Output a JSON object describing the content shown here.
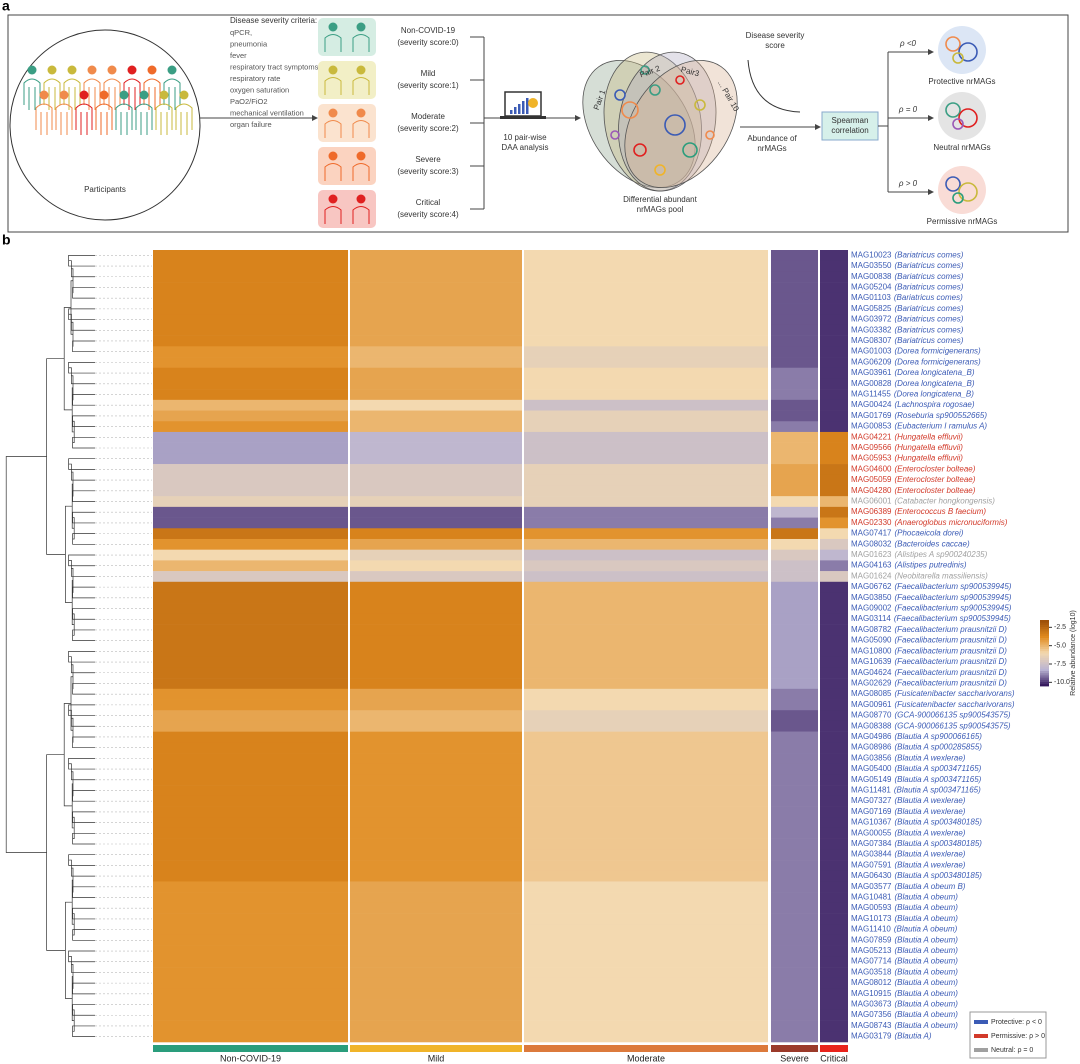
{
  "panel_a": {
    "label": "a",
    "participants": "Participants",
    "criteria_title": "Disease severity criteria:",
    "criteria": [
      "qPCR,",
      "pneumonia",
      "fever",
      "respiratory tract symptoms",
      "respiratory rate",
      "oxygen saturation",
      "PaO2/FiO2",
      "mechanical ventilation",
      "organ failure"
    ],
    "groups": [
      {
        "name": "Non-COVID-19",
        "score": "(severity score:0)",
        "bg": "#d5ede3",
        "head": "#3b9e84"
      },
      {
        "name": "Mild",
        "score": "(severity score:1)",
        "bg": "#f2efc6",
        "head": "#c9b93c"
      },
      {
        "name": "Moderate",
        "score": "(severity score:2)",
        "bg": "#fbe3cf",
        "head": "#f08a4b"
      },
      {
        "name": "Severe",
        "score": "(severity score:3)",
        "bg": "#fbd3c0",
        "head": "#ef6a2a"
      },
      {
        "name": "Critical",
        "score": "(severity score:4)",
        "bg": "#f8c6c2",
        "head": "#e02020"
      }
    ],
    "daa": [
      "10 pair-wise",
      "DAA analysis"
    ],
    "pairs": [
      "Pair 1",
      "Pair 2",
      "Pair3",
      "... Pair 10"
    ],
    "pool": [
      "Differential abundant",
      "nrMAGs pool"
    ],
    "severity": [
      "Disease severity",
      "score"
    ],
    "abundance": [
      "Abundance of",
      "nrMAGs"
    ],
    "spearman": [
      "Spearman",
      "correlation"
    ],
    "outcomes": [
      {
        "rho": "ρ <0",
        "label": "Protective nrMAGs",
        "color": "#3b5bb5",
        "bg": "#dce6f5"
      },
      {
        "rho": "ρ = 0",
        "label": "Neutral nrMAGs",
        "color": "#9a9a9a",
        "bg": "#e4e4e4"
      },
      {
        "rho": "ρ > 0",
        "label": "Permissive nrMAGs",
        "color": "#d23a2a",
        "bg": "#f9dcd6"
      }
    ]
  },
  "panel_b": {
    "label": "b",
    "groups": [
      {
        "name": "Non-COVID-19",
        "color": "#2a9d7c"
      },
      {
        "name": "Mild",
        "color": "#f0b429"
      },
      {
        "name": "Moderate",
        "color": "#dc7a3c"
      },
      {
        "name": "Severe",
        "color": "#9b3a2a"
      },
      {
        "name": "Critical",
        "color": "#e8231c"
      }
    ],
    "colorbar": {
      "title": "Relative abundance (log10)",
      "clim": [
        -10.5,
        -1.5
      ],
      "colormap": [
        "#2b0d55",
        "#b9b3d3",
        "#f3d9b0",
        "#e08a1e",
        "#9a4d08"
      ],
      "ticks": [
        -2.5,
        {
          "value": -5,
          "label": "-5.0"
        },
        -7.5,
        {
          "value": -10,
          "label": "-10.0"
        }
      ]
    },
    "legend": [
      {
        "text": "Protective: ρ < 0",
        "color": "#3b5bb5"
      },
      {
        "text": "Permissive: ρ > 0",
        "color": "#d23a2a"
      },
      {
        "text": "Neutral: ρ = 0",
        "color": "#a0a0a0"
      }
    ],
    "rows": [
      {
        "id": "MAG10023",
        "taxon": "(Bariatricus comes)",
        "color": "#3b5bb5",
        "values": [
          -3.5,
          -4.5,
          -6,
          -9.5,
          -10
        ]
      },
      {
        "id": "MAG03550",
        "taxon": "(Bariatricus comes)",
        "color": "#3b5bb5",
        "values": [
          -3.5,
          -4.5,
          -6,
          -9.5,
          -10
        ]
      },
      {
        "id": "MAG00838",
        "taxon": "(Bariatricus comes)",
        "color": "#3b5bb5",
        "values": [
          -3.5,
          -4.5,
          -6,
          -9.5,
          -10
        ]
      },
      {
        "id": "MAG05204",
        "taxon": "(Bariatricus comes)",
        "color": "#3b5bb5",
        "values": [
          -3.5,
          -4.5,
          -6,
          -9.5,
          -10
        ]
      },
      {
        "id": "MAG01103",
        "taxon": "(Bariatricus comes)",
        "color": "#3b5bb5",
        "values": [
          -3.5,
          -4.5,
          -6,
          -9.5,
          -10
        ]
      },
      {
        "id": "MAG05825",
        "taxon": "(Bariatricus comes)",
        "color": "#3b5bb5",
        "values": [
          -3.5,
          -4.5,
          -6,
          -9.5,
          -10
        ]
      },
      {
        "id": "MAG03972",
        "taxon": "(Bariatricus comes)",
        "color": "#3b5bb5",
        "values": [
          -3.5,
          -4.5,
          -6,
          -9.5,
          -10
        ]
      },
      {
        "id": "MAG03382",
        "taxon": "(Bariatricus comes)",
        "color": "#3b5bb5",
        "values": [
          -3.5,
          -4.5,
          -6,
          -9.5,
          -10
        ]
      },
      {
        "id": "MAG08307",
        "taxon": "(Bariatricus comes)",
        "color": "#3b5bb5",
        "values": [
          -3.5,
          -4.5,
          -6,
          -9.5,
          -10
        ]
      },
      {
        "id": "MAG01003",
        "taxon": "(Dorea formicigenerans)",
        "color": "#3b5bb5",
        "values": [
          -4,
          -5,
          -6.5,
          -9.5,
          -10
        ]
      },
      {
        "id": "MAG06209",
        "taxon": "(Dorea formicigenerans)",
        "color": "#3b5bb5",
        "values": [
          -4,
          -5,
          -6.5,
          -9.5,
          -10
        ]
      },
      {
        "id": "MAG03961",
        "taxon": "(Dorea longicatena_B)",
        "color": "#3b5bb5",
        "values": [
          -3.5,
          -4.5,
          -6,
          -9,
          -10
        ]
      },
      {
        "id": "MAG00828",
        "taxon": "(Dorea longicatena_B)",
        "color": "#3b5bb5",
        "values": [
          -3.5,
          -4.5,
          -6,
          -9,
          -10
        ]
      },
      {
        "id": "MAG11455",
        "taxon": "(Dorea longicatena_B)",
        "color": "#3b5bb5",
        "values": [
          -3.5,
          -4.5,
          -6,
          -9,
          -10
        ]
      },
      {
        "id": "MAG00424",
        "taxon": "(Lachnospira rogosae)",
        "color": "#3b5bb5",
        "values": [
          -5,
          -6,
          -7.5,
          -9.5,
          -10
        ]
      },
      {
        "id": "MAG01769",
        "taxon": "(Roseburia sp900552665)",
        "color": "#3b5bb5",
        "values": [
          -4.5,
          -5,
          -6.5,
          -9.5,
          -10
        ]
      },
      {
        "id": "MAG00853",
        "taxon": "(Eubacterium I ramulus A)",
        "color": "#3b5bb5",
        "values": [
          -4,
          -5,
          -6.5,
          -9,
          -10
        ]
      },
      {
        "id": "MAG04221",
        "taxon": "(Hungatella effluvii)",
        "color": "#d23a2a",
        "values": [
          -8.5,
          -8,
          -7.5,
          -5,
          -3.5
        ]
      },
      {
        "id": "MAG09566",
        "taxon": "(Hungatella effluvii)",
        "color": "#d23a2a",
        "values": [
          -8.5,
          -8,
          -7.5,
          -5,
          -3.5
        ]
      },
      {
        "id": "MAG05953",
        "taxon": "(Hungatella effluvii)",
        "color": "#d23a2a",
        "values": [
          -8.5,
          -8,
          -7.5,
          -5,
          -3.5
        ]
      },
      {
        "id": "MAG04600",
        "taxon": "(Enterocloster bolteae)",
        "color": "#d23a2a",
        "values": [
          -7,
          -7,
          -6.5,
          -4.5,
          -3
        ]
      },
      {
        "id": "MAG05059",
        "taxon": "(Enterocloster bolteae)",
        "color": "#d23a2a",
        "values": [
          -7,
          -7,
          -6.5,
          -4.5,
          -3
        ]
      },
      {
        "id": "MAG04280",
        "taxon": "(Enterocloster bolteae)",
        "color": "#d23a2a",
        "values": [
          -7,
          -7,
          -6.5,
          -4.5,
          -3
        ]
      },
      {
        "id": "MAG06001",
        "taxon": "(Catabacter hongkongensis)",
        "color": "#a0a0a0",
        "values": [
          -6.5,
          -6.5,
          -6.5,
          -6,
          -5
        ]
      },
      {
        "id": "MAG06389",
        "taxon": "(Enterococcus B faecium)",
        "color": "#d23a2a",
        "values": [
          -9.5,
          -9.5,
          -9,
          -8,
          -3
        ]
      },
      {
        "id": "MAG02330",
        "taxon": "(Anaeroglobus micronuciformis)",
        "color": "#d23a2a",
        "values": [
          -9.5,
          -9.5,
          -9,
          -9,
          -4
        ]
      },
      {
        "id": "MAG07417",
        "taxon": "(Phocaeicola dorei)",
        "color": "#3b5bb5",
        "values": [
          -3,
          -3.5,
          -4,
          -3,
          -6
        ]
      },
      {
        "id": "MAG08032",
        "taxon": "(Bacteroides caccae)",
        "color": "#3b5bb5",
        "values": [
          -4,
          -4.5,
          -5,
          -6,
          -7
        ]
      },
      {
        "id": "MAG01623",
        "taxon": "(Alistipes A sp900240235)",
        "color": "#a0a0a0",
        "values": [
          -6,
          -6.5,
          -7.5,
          -7,
          -8
        ]
      },
      {
        "id": "MAG04163",
        "taxon": "(Alistipes putredinis)",
        "color": "#3b5bb5",
        "values": [
          -5,
          -6,
          -7,
          -7.5,
          -9
        ]
      },
      {
        "id": "MAG01624",
        "taxon": "(Neobitarella massiliensis)",
        "color": "#a0a0a0",
        "values": [
          -7,
          -7,
          -7.5,
          -7.5,
          -7
        ]
      },
      {
        "id": "MAG06762",
        "taxon": "(Faecalibacterium sp900539945)",
        "color": "#3b5bb5",
        "values": [
          -3,
          -3.5,
          -5,
          -8.5,
          -10
        ]
      },
      {
        "id": "MAG03850",
        "taxon": "(Faecalibacterium sp900539945)",
        "color": "#3b5bb5",
        "values": [
          -3,
          -3.5,
          -5,
          -8.5,
          -10
        ]
      },
      {
        "id": "MAG09002",
        "taxon": "(Faecalibacterium sp900539945)",
        "color": "#3b5bb5",
        "values": [
          -3,
          -3.5,
          -5,
          -8.5,
          -10
        ]
      },
      {
        "id": "MAG03114",
        "taxon": "(Faecalibacterium sp900539945)",
        "color": "#3b5bb5",
        "values": [
          -3,
          -3.5,
          -5,
          -8.5,
          -10
        ]
      },
      {
        "id": "MAG08782",
        "taxon": "(Faecalibacterium prausnitzii D)",
        "color": "#3b5bb5",
        "values": [
          -3,
          -3.5,
          -5,
          -8.5,
          -10
        ]
      },
      {
        "id": "MAG05090",
        "taxon": "(Faecalibacterium prausnitzii D)",
        "color": "#3b5bb5",
        "values": [
          -3,
          -3.5,
          -5,
          -8.5,
          -10
        ]
      },
      {
        "id": "MAG10800",
        "taxon": "(Faecalibacterium prausnitzii D)",
        "color": "#3b5bb5",
        "values": [
          -3,
          -3.5,
          -5,
          -8.5,
          -10
        ]
      },
      {
        "id": "MAG10639",
        "taxon": "(Faecalibacterium prausnitzii D)",
        "color": "#3b5bb5",
        "values": [
          -3,
          -3.5,
          -5,
          -8.5,
          -10
        ]
      },
      {
        "id": "MAG04624",
        "taxon": "(Faecalibacterium prausnitzii D)",
        "color": "#3b5bb5",
        "values": [
          -3,
          -3.5,
          -5,
          -8.5,
          -10
        ]
      },
      {
        "id": "MAG02629",
        "taxon": "(Faecalibacterium prausnitzii D)",
        "color": "#3b5bb5",
        "values": [
          -3,
          -3.5,
          -5,
          -8.5,
          -10
        ]
      },
      {
        "id": "MAG08085",
        "taxon": "(Fusicatenibacter saccharivorans)",
        "color": "#3b5bb5",
        "values": [
          -4,
          -4.5,
          -6,
          -9,
          -10
        ]
      },
      {
        "id": "MAG00961",
        "taxon": "(Fusicatenibacter saccharivorans)",
        "color": "#3b5bb5",
        "values": [
          -4,
          -4.5,
          -6,
          -9,
          -10
        ]
      },
      {
        "id": "MAG08770",
        "taxon": "(GCA-900066135 sp900543575)",
        "color": "#3b5bb5",
        "values": [
          -4.5,
          -5,
          -6.5,
          -9.5,
          -10
        ]
      },
      {
        "id": "MAG08388",
        "taxon": "(GCA-900066135 sp900543575)",
        "color": "#3b5bb5",
        "values": [
          -4.5,
          -5,
          -6.5,
          -9.5,
          -10
        ]
      },
      {
        "id": "MAG04986",
        "taxon": "(Blautia A sp900066165)",
        "color": "#3b5bb5",
        "values": [
          -3.5,
          -4,
          -5.5,
          -9,
          -10
        ]
      },
      {
        "id": "MAG08986",
        "taxon": "(Blautia A sp000285855)",
        "color": "#3b5bb5",
        "values": [
          -3.5,
          -4,
          -5.5,
          -9,
          -10
        ]
      },
      {
        "id": "MAG03856",
        "taxon": "(Blautia A wexlerae)",
        "color": "#3b5bb5",
        "values": [
          -3.5,
          -4,
          -5.5,
          -9,
          -10
        ]
      },
      {
        "id": "MAG05400",
        "taxon": "(Blautia A sp003471165)",
        "color": "#3b5bb5",
        "values": [
          -3.5,
          -4,
          -5.5,
          -9,
          -10
        ]
      },
      {
        "id": "MAG05149",
        "taxon": "(Blautia A sp003471165)",
        "color": "#3b5bb5",
        "values": [
          -3.5,
          -4,
          -5.5,
          -9,
          -10
        ]
      },
      {
        "id": "MAG11481",
        "taxon": "(Blautia A sp003471165)",
        "color": "#3b5bb5",
        "values": [
          -3.5,
          -4,
          -5.5,
          -9,
          -10
        ]
      },
      {
        "id": "MAG07327",
        "taxon": "(Blautia A wexlerae)",
        "color": "#3b5bb5",
        "values": [
          -3.5,
          -4,
          -5.5,
          -9,
          -10
        ]
      },
      {
        "id": "MAG07169",
        "taxon": "(Blautia A wexlerae)",
        "color": "#3b5bb5",
        "values": [
          -3.5,
          -4,
          -5.5,
          -9,
          -10
        ]
      },
      {
        "id": "MAG10367",
        "taxon": "(Blautia A sp003480185)",
        "color": "#3b5bb5",
        "values": [
          -3.5,
          -4,
          -5.5,
          -9,
          -10
        ]
      },
      {
        "id": "MAG00055",
        "taxon": "(Blautia A wexlerae)",
        "color": "#3b5bb5",
        "values": [
          -3.5,
          -4,
          -5.5,
          -9,
          -10
        ]
      },
      {
        "id": "MAG07384",
        "taxon": "(Blautia A sp003480185)",
        "color": "#3b5bb5",
        "values": [
          -3.5,
          -4,
          -5.5,
          -9,
          -10
        ]
      },
      {
        "id": "MAG03844",
        "taxon": "(Blautia A wexlerae)",
        "color": "#3b5bb5",
        "values": [
          -3.5,
          -4,
          -5.5,
          -9,
          -10
        ]
      },
      {
        "id": "MAG07591",
        "taxon": "(Blautia A wexlerae)",
        "color": "#3b5bb5",
        "values": [
          -3.5,
          -4,
          -5.5,
          -9,
          -10
        ]
      },
      {
        "id": "MAG06430",
        "taxon": "(Blautia A sp003480185)",
        "color": "#3b5bb5",
        "values": [
          -3.5,
          -4,
          -5.5,
          -9,
          -10
        ]
      },
      {
        "id": "MAG03577",
        "taxon": "(Blautia A obeum B)",
        "color": "#3b5bb5",
        "values": [
          -4,
          -4.5,
          -6,
          -9,
          -10
        ]
      },
      {
        "id": "MAG10481",
        "taxon": "(Blautia A obeum)",
        "color": "#3b5bb5",
        "values": [
          -4,
          -4.5,
          -6,
          -9,
          -10
        ]
      },
      {
        "id": "MAG00593",
        "taxon": "(Blautia A obeum)",
        "color": "#3b5bb5",
        "values": [
          -4,
          -4.5,
          -6,
          -9,
          -10
        ]
      },
      {
        "id": "MAG10173",
        "taxon": "(Blautia A obeum)",
        "color": "#3b5bb5",
        "values": [
          -4,
          -4.5,
          -6,
          -9,
          -10
        ]
      },
      {
        "id": "MAG11410",
        "taxon": "(Blautia A obeum)",
        "color": "#3b5bb5",
        "values": [
          -4,
          -4.5,
          -6,
          -9,
          -10
        ]
      },
      {
        "id": "MAG07859",
        "taxon": "(Blautia A obeum)",
        "color": "#3b5bb5",
        "values": [
          -4,
          -4.5,
          -6,
          -9,
          -10
        ]
      },
      {
        "id": "MAG05213",
        "taxon": "(Blautia A obeum)",
        "color": "#3b5bb5",
        "values": [
          -4,
          -4.5,
          -6,
          -9,
          -10
        ]
      },
      {
        "id": "MAG07714",
        "taxon": "(Blautia A obeum)",
        "color": "#3b5bb5",
        "values": [
          -4,
          -4.5,
          -6,
          -9,
          -10
        ]
      },
      {
        "id": "MAG03518",
        "taxon": "(Blautia A obeum)",
        "color": "#3b5bb5",
        "values": [
          -4,
          -4.5,
          -6,
          -9,
          -10
        ]
      },
      {
        "id": "MAG08012",
        "taxon": "(Blautia A obeum)",
        "color": "#3b5bb5",
        "values": [
          -4,
          -4.5,
          -6,
          -9,
          -10
        ]
      },
      {
        "id": "MAG10915",
        "taxon": "(Blautia A obeum)",
        "color": "#3b5bb5",
        "values": [
          -4,
          -4.5,
          -6,
          -9,
          -10
        ]
      },
      {
        "id": "MAG03673",
        "taxon": "(Blautia A obeum)",
        "color": "#3b5bb5",
        "values": [
          -4,
          -4.5,
          -6,
          -9,
          -10
        ]
      },
      {
        "id": "MAG07356",
        "taxon": "(Blautia A obeum)",
        "color": "#3b5bb5",
        "values": [
          -4,
          -4.5,
          -6,
          -9,
          -10
        ]
      },
      {
        "id": "MAG08743",
        "taxon": "(Blautia A obeum)",
        "color": "#3b5bb5",
        "values": [
          -4,
          -4.5,
          -6,
          -9,
          -10
        ]
      },
      {
        "id": "MAG03179",
        "taxon": "(Blautia A)",
        "color": "#3b5bb5",
        "values": [
          -4,
          -4.5,
          -6,
          -9,
          -10
        ]
      }
    ]
  }
}
